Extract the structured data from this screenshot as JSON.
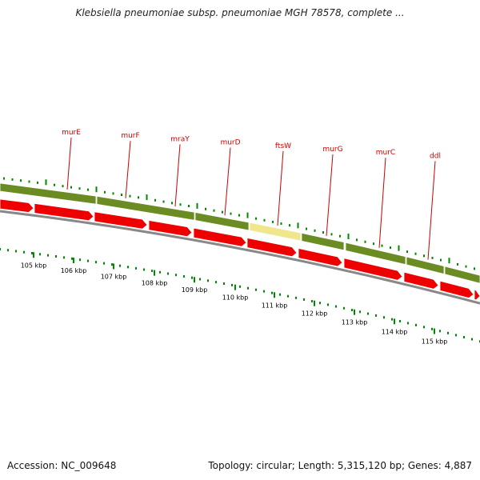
{
  "title": "Klebsiella pneumoniae subsp. pneumoniae MGH 78578, complete ...",
  "footer": {
    "accession": "Accession: NC_009648",
    "summary": "Topology: circular; Length: 5,315,120 bp; Genes: 4,887"
  },
  "colors": {
    "gene_bar": "#6b8c23",
    "gene_bar_highlight": "#f0e68c",
    "cds_arrow": "#ee0000",
    "backbone": "#888888",
    "tick": "#008800",
    "gene_label": "#cc0000"
  },
  "gene_labels": [
    "murE",
    "murF",
    "mraY",
    "murD",
    "ftsW",
    "murG",
    "murC",
    "ddl"
  ],
  "scale_labels": [
    "105 kbp",
    "106 kbp",
    "107 kbp",
    "108 kbp",
    "109 kbp",
    "110 kbp",
    "111 kbp",
    "112 kbp",
    "113 kbp",
    "114 kbp",
    "115 kbp"
  ]
}
